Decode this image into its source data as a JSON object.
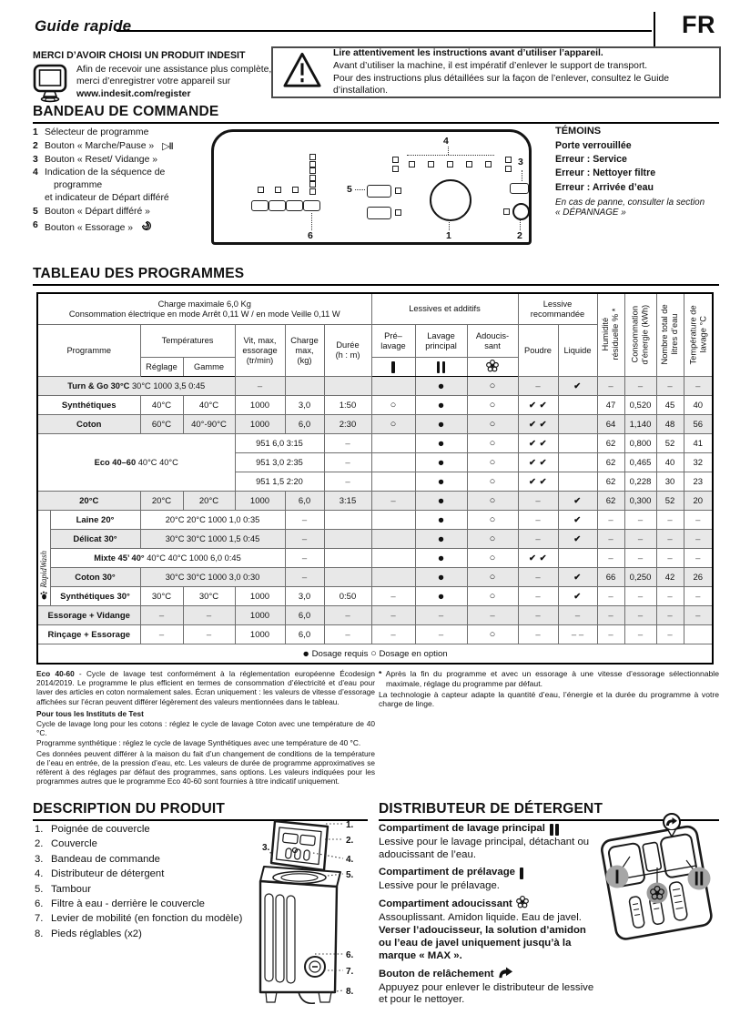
{
  "header": {
    "doc_title": "Guide rapide",
    "lang": "FR"
  },
  "intro": {
    "heading": "MERCI D’AVOIR CHOISI UN PRODUIT INDESIT",
    "line1": "Afin de recevoir une assistance plus complète,",
    "line2": "merci d’enregistrer votre appareil sur",
    "url": "www.indesit.com/register"
  },
  "warning": {
    "line1_bold": "Lire attentivement les instructions avant d’utiliser l’appareil.",
    "line2": "Avant d’utiliser la machine, il est impératif d’enlever le support de transport.",
    "line3": "Pour des instructions plus détaillées sur la façon de l’enlever, consultez le Guide d’installation."
  },
  "bandeau": {
    "heading": "BANDEAU DE COMMANDE",
    "items": [
      {
        "n": "1",
        "lines": [
          "Sélecteur de programme"
        ]
      },
      {
        "n": "2",
        "lines": [
          "Bouton « Marche/Pause »"
        ],
        "icon": "play-pause"
      },
      {
        "n": "3",
        "lines": [
          "Bouton « Reset/ Vidange »"
        ]
      },
      {
        "n": "4",
        "lines": [
          "Indication de la séquence de",
          "programme",
          "et indicateur de Départ différé"
        ]
      },
      {
        "n": "5",
        "lines": [
          "Bouton « Départ différé »"
        ]
      },
      {
        "n": "6",
        "lines": [
          "Bouton « Essorage »"
        ],
        "icon": "spin"
      }
    ],
    "panel_labels": {
      "k1": "1",
      "k2": "2",
      "k3": "3",
      "k4": "4",
      "k5": "5",
      "k6": "6"
    }
  },
  "temoins": {
    "heading": "TÉMOINS",
    "lines": [
      "Porte verrouillée",
      "Erreur : Service",
      "Erreur : Nettoyer filtre",
      "Erreur : Arrivée d’eau"
    ],
    "note1": "En cas de panne, consulter la section",
    "note2": "« DÉPANNAGE »"
  },
  "table": {
    "heading": "TABLEAU DES PROGRAMMES",
    "rapid_label": "RapidWash",
    "head1": [
      {
        "t": "Charge maximale 6,0 Kg\nConsommation électrique en mode Arrêt 0,11 W / en mode Veille 0,11 W",
        "s": 7
      },
      {
        "t": "Lessives et additifs",
        "s": 3
      },
      {
        "t": "Lessive\nrecommandée",
        "s": 2
      },
      {
        "t": "Humidité\nrésiduelle % *",
        "r": 3,
        "k": "rot"
      },
      {
        "t": "Consommation\nd’énergie (kWh)",
        "r": 3,
        "k": "rot"
      },
      {
        "t": "Nombre total de\nlitres d’eau",
        "r": 3,
        "k": "rot"
      },
      {
        "t": "Température de\nlavage °C",
        "r": 3,
        "k": "rot"
      }
    ],
    "head2": [
      {
        "t": "Programme",
        "r": 2,
        "s": 2
      },
      {
        "t": "Températures",
        "s": 2
      },
      {
        "t": "Vit, max,\nessorage\n(tr/min)",
        "r": 2
      },
      {
        "t": "Charge\nmax,\n(kg)",
        "r": 2
      },
      {
        "t": "Durée\n(h : m)",
        "r": 2
      },
      {
        "t": "Pré–\nlavage"
      },
      {
        "t": "Lavage\nprincipal"
      },
      {
        "t": "Adoucis-\nsant"
      },
      {
        "t": "Poudre",
        "r": 2
      },
      {
        "t": "Liquide",
        "r": 2
      }
    ],
    "head3": [
      {
        "t": "Réglage"
      },
      {
        "t": "Gamme"
      },
      {
        "k": "bar1"
      },
      {
        "k": "bar2"
      },
      {
        "k": "flower"
      }
    ],
    "rows": [
      {
        "cls": "g",
        "cells": [
          {
            "b": "Turn & Go 30°C",
            "t": " 30°C 1000 3,5 0:45",
            "s": 4,
            "k": "sq"
          },
          {
            "k": "dash"
          },
          {},
          {},
          {},
          {
            "k": "dot"
          },
          {
            "k": "ring"
          },
          {
            "k": "dash"
          },
          {
            "k": "chk"
          },
          {
            "k": "dash"
          },
          {
            "k": "dash"
          },
          {
            "k": "dash"
          },
          {
            "k": "dash"
          }
        ]
      },
      {
        "cls": "w",
        "cells": [
          {
            "b": "Synthétiques",
            "s": 2
          },
          {
            "t": "40°C"
          },
          {
            "t": "40°C"
          },
          {
            "t": "1000"
          },
          {
            "t": "3,0"
          },
          {
            "t": "1:50"
          },
          {
            "k": "ring"
          },
          {
            "k": "dot"
          },
          {
            "k": "ring"
          },
          {
            "k": "chk2"
          },
          {},
          {
            "t": "47"
          },
          {
            "t": "0,520"
          },
          {
            "t": "45"
          },
          {
            "t": "40"
          }
        ]
      },
      {
        "cls": "g",
        "cells": [
          {
            "b": "Coton",
            "s": 2
          },
          {
            "t": "60°C"
          },
          {
            "t": "40°-90°C"
          },
          {
            "t": "1000"
          },
          {
            "t": "6,0"
          },
          {
            "t": "2:30"
          },
          {
            "k": "ring"
          },
          {
            "k": "dot"
          },
          {
            "k": "ring"
          },
          {
            "k": "chk2"
          },
          {},
          {
            "t": "64"
          },
          {
            "t": "1,140"
          },
          {
            "t": "48"
          },
          {
            "t": "56"
          }
        ]
      },
      {
        "cls": "w",
        "cells": [
          {
            "b": "Eco 40–60",
            "t": " 40°C 40°C",
            "s": 4,
            "r": 3,
            "k": "sq"
          },
          {
            "t": "951 6,0 3:15",
            "s": 2,
            "k": "sq"
          },
          {
            "k": "dash"
          },
          {},
          {
            "k": "dot"
          },
          {
            "k": "ring"
          },
          {
            "k": "chk2"
          },
          {},
          {
            "t": "62"
          },
          {
            "t": "0,800"
          },
          {
            "t": "52"
          },
          {
            "t": "41"
          }
        ]
      },
      {
        "cls": "w",
        "cells": [
          {
            "t": "951 3,0 2:35",
            "s": 2,
            "k": "sq"
          },
          {
            "k": "dash"
          },
          {},
          {
            "k": "dot"
          },
          {
            "k": "ring"
          },
          {
            "k": "chk2"
          },
          {},
          {
            "t": "62"
          },
          {
            "t": "0,465"
          },
          {
            "t": "40"
          },
          {
            "t": "32"
          }
        ]
      },
      {
        "cls": "w",
        "cells": [
          {
            "t": "951 1,5 2:20",
            "s": 2,
            "k": "sq"
          },
          {
            "k": "dash"
          },
          {},
          {
            "k": "dot"
          },
          {
            "k": "ring"
          },
          {
            "k": "chk2"
          },
          {},
          {
            "t": "62"
          },
          {
            "t": "0,228"
          },
          {
            "t": "30"
          },
          {
            "t": "23"
          }
        ]
      },
      {
        "cls": "g",
        "cells": [
          {
            "b": "20°C",
            "s": 2
          },
          {
            "t": "20°C"
          },
          {
            "t": "20°C"
          },
          {
            "t": "1000"
          },
          {
            "t": "6,0"
          },
          {
            "t": "3:15"
          },
          {
            "k": "dash"
          },
          {
            "k": "dot"
          },
          {
            "k": "ring"
          },
          {
            "k": "dash"
          },
          {
            "k": "chk"
          },
          {
            "t": "62"
          },
          {
            "t": "0,300"
          },
          {
            "t": "52"
          },
          {
            "t": "20"
          }
        ]
      },
      {
        "cls": "w",
        "cells": [
          {
            "k": "rapid",
            "r": 5
          },
          {
            "b": "Laine 20°"
          },
          {
            "t": "20°C 20°C 1000 1,0 0:35",
            "s": 3,
            "k": "sq"
          },
          {
            "k": "dash"
          },
          {},
          {},
          {
            "k": "dot"
          },
          {
            "k": "ring"
          },
          {
            "k": "dash"
          },
          {
            "k": "chk"
          },
          {
            "k": "dash"
          },
          {
            "k": "dash"
          },
          {
            "k": "dash"
          },
          {
            "k": "dash"
          }
        ]
      },
      {
        "cls": "g",
        "cells": [
          {
            "b": "Délicat 30°"
          },
          {
            "t": "30°C 30°C 1000 1,5 0:45",
            "s": 3,
            "k": "sq"
          },
          {
            "k": "dash"
          },
          {},
          {},
          {
            "k": "dot"
          },
          {
            "k": "ring"
          },
          {
            "k": "dash"
          },
          {
            "k": "chk"
          },
          {
            "k": "dash"
          },
          {
            "k": "dash"
          },
          {
            "k": "dash"
          },
          {
            "k": "dash"
          }
        ]
      },
      {
        "cls": "w",
        "cells": [
          {
            "b": "Mixte 45’ 40°",
            "t": " 40°C 40°C 1000 6,0 0:45",
            "s": 4,
            "k": "sq"
          },
          {
            "k": "dash"
          },
          {},
          {},
          {
            "k": "dot"
          },
          {
            "k": "ring"
          },
          {
            "k": "chk2"
          },
          {},
          {
            "k": "dash"
          },
          {
            "k": "dash"
          },
          {
            "k": "dash"
          },
          {
            "k": "dash"
          }
        ]
      },
      {
        "cls": "g",
        "cells": [
          {
            "b": "Coton 30°"
          },
          {
            "t": "30°C 30°C 1000 3,0 0:30",
            "s": 3,
            "k": "sq"
          },
          {
            "k": "dash"
          },
          {},
          {},
          {
            "k": "dot"
          },
          {
            "k": "ring"
          },
          {
            "k": "dash"
          },
          {
            "k": "chk"
          },
          {
            "t": "66"
          },
          {
            "t": "0,250"
          },
          {
            "t": "42"
          },
          {
            "t": "26"
          }
        ]
      },
      {
        "cls": "w",
        "cells": [
          {
            "b": "Synthétiques 30°"
          },
          {
            "t": "30°C"
          },
          {
            "t": "30°C"
          },
          {
            "t": "1000"
          },
          {
            "t": "3,0"
          },
          {
            "t": "0:50"
          },
          {
            "k": "dash"
          },
          {
            "k": "dot"
          },
          {
            "k": "ring"
          },
          {
            "k": "dash"
          },
          {
            "k": "chk"
          },
          {
            "k": "dash"
          },
          {
            "k": "dash"
          },
          {
            "k": "dash"
          },
          {
            "k": "dash"
          }
        ]
      },
      {
        "cls": "g",
        "cells": [
          {
            "b": "Essorage + Vidange",
            "s": 2
          },
          {
            "k": "dash"
          },
          {
            "k": "dash"
          },
          {
            "t": "1000"
          },
          {
            "t": "6,0"
          },
          {
            "k": "dash"
          },
          {
            "k": "dash"
          },
          {
            "k": "dash"
          },
          {
            "k": "dash"
          },
          {
            "k": "dash"
          },
          {
            "k": "dash"
          },
          {
            "k": "dash"
          },
          {
            "k": "dash"
          },
          {
            "k": "dash"
          },
          {
            "k": "dash"
          }
        ]
      },
      {
        "cls": "w",
        "cells": [
          {
            "b": "Rinçage + Essorage",
            "s": 2
          },
          {
            "k": "dash"
          },
          {
            "k": "dash"
          },
          {
            "t": "1000"
          },
          {
            "t": "6,0"
          },
          {
            "k": "dash"
          },
          {
            "k": "dash"
          },
          {
            "k": "dash"
          },
          {
            "k": "ring"
          },
          {
            "k": "dash"
          },
          {
            "k": "dash2"
          },
          {
            "k": "dash"
          },
          {
            "k": "dash"
          },
          {
            "k": "dash"
          },
          {}
        ]
      }
    ],
    "legend": {
      "dot_label": "Dosage requis",
      "ring_label": "Dosage en option"
    }
  },
  "footnotes": {
    "left": [
      {
        "b": "Eco 40-60",
        "t": " - Cycle de lavage test conformément à la réglementation européenne Écodesign 2014/2019. Le programme le plus efficient en termes de consommation d’électricité et d’eau pour laver des articles en coton normalement sales. Écran uniquement : les valeurs de vitesse d’essorage affichées sur l’écran peuvent différer légèrement des valeurs mentionnées dans le tableau.",
        "cls": ""
      },
      {
        "b": "Pour tous les Instituts de Test",
        "t": "",
        "cls": "gap"
      },
      {
        "t": "Cycle de lavage long pour les cotons :  réglez le cycle de lavage Coton avec une température de 40 °C.",
        "cls": ""
      },
      {
        "t": "Programme synthétique :  réglez le cycle de lavage Synthétiques avec une température de 40 °C.",
        "cls": ""
      },
      {
        "t": "Ces données peuvent différer à la maison du fait d’un changement de conditions de la température de l’eau en entrée, de la pression d’eau, etc. Les valeurs de durée de programme approximatives se réfèrent à des réglages par défaut des programmes, sans options. Les valeurs indiquées pour les programmes autres que le programme Eco 40-60 sont fournies à titre indicatif uniquement.",
        "cls": ""
      }
    ],
    "right": [
      {
        "b": "*",
        "t": "  Après la fin du programme et avec un essorage à une vitesse d’essorage sélectionnable maximale, réglage du programme par défaut.",
        "cls": "hang"
      },
      {
        "t": "La technologie à capteur adapte la quantité d’eau, l’énergie et la durée du programme à votre charge de linge.",
        "cls": ""
      }
    ]
  },
  "description": {
    "heading": "DESCRIPTION DU PRODUIT",
    "items": [
      "Poignée de couvercle",
      "Couvercle",
      "Bandeau de commande",
      "Distributeur de détergent",
      "Tambour",
      "Filtre à eau - derrière le couvercle",
      "Levier de mobilité (en fonction du modèle)",
      "Pieds réglables (x2)"
    ],
    "callouts": [
      "1.",
      "2.",
      "3.",
      "4.",
      "5.",
      "6.",
      "7.",
      "8."
    ]
  },
  "dispenser": {
    "heading": "DISTRIBUTEUR DE DÉTERGENT",
    "blocks": [
      {
        "title": "Compartiment de lavage principal",
        "icon": "bar2",
        "text": "Lessive pour le lavage principal, détachant ou adoucissant de l’eau."
      },
      {
        "title": "Compartiment de prélavage",
        "icon": "bar1",
        "text": "Lessive pour le prélavage."
      },
      {
        "title": "Compartiment adoucissant",
        "icon": "flower",
        "text": "Assouplissant. Amidon liquide. Eau de javel.",
        "bold_text": "Verser l’adoucisseur, la solution d’amidon ou l’eau de javel uniquement jusqu’à la marque « MAX »."
      },
      {
        "title": "Bouton de relâchement",
        "icon": "arrow",
        "text": "Appuyez pour enlever le distributeur de lessive et pour le nettoyer."
      }
    ]
  }
}
